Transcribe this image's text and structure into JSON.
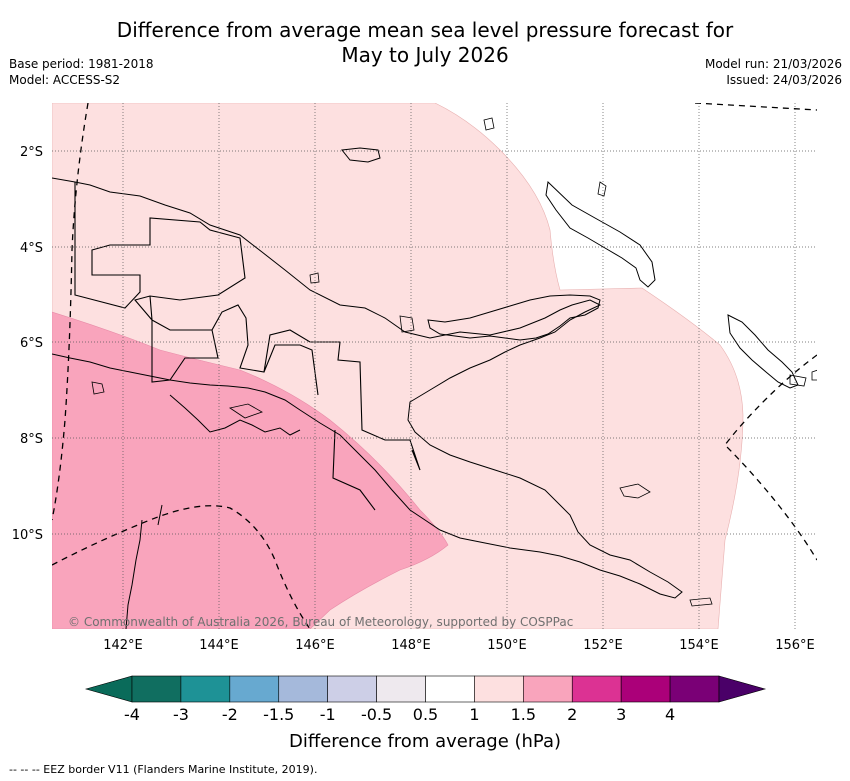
{
  "header": {
    "title_line1": "Difference from average mean sea level pressure forecast for",
    "title_line2": "May to July 2026",
    "base_period": "Base period: 1981-2018",
    "model": "Model: ACCESS-S2",
    "model_run": "Model run: 21/03/2026",
    "issued": "Issued: 24/03/2026"
  },
  "map": {
    "lon_labels": [
      "142°E",
      "144°E",
      "146°E",
      "148°E",
      "150°E",
      "152°E",
      "154°E",
      "156°E"
    ],
    "lat_labels": [
      "2°S",
      "4°S",
      "6°S",
      "8°S",
      "10°S"
    ],
    "copyright": "© Commonwealth of Australia 2026, Bureau of Meteorology, supported by COSPPac",
    "fill_colors": {
      "0.5 to 1": "#fde0e0",
      "1 to 1.5": "#f9a4bc"
    }
  },
  "colorbar": {
    "labels": [
      "-4",
      "-3",
      "-2",
      "-1.5",
      "-1",
      "-0.5",
      "0.5",
      "1",
      "1.5",
      "2",
      "3",
      "4"
    ],
    "colors": [
      "#106e60",
      "#1e9296",
      "#67a9d0",
      "#a5b9db",
      "#cdcfe7",
      "#eee9ee",
      "#ffffff",
      "#fde0e0",
      "#f9a4bc",
      "#dc3293",
      "#ab0079",
      "#7a0076"
    ],
    "under_color": "#0a6b5a",
    "over_color": "#4a0068",
    "title": "Difference from average (hPa)"
  },
  "footer": {
    "legend_text": "--  --  -- EEZ border V11 (Flanders Marine Institute, 2019)."
  }
}
